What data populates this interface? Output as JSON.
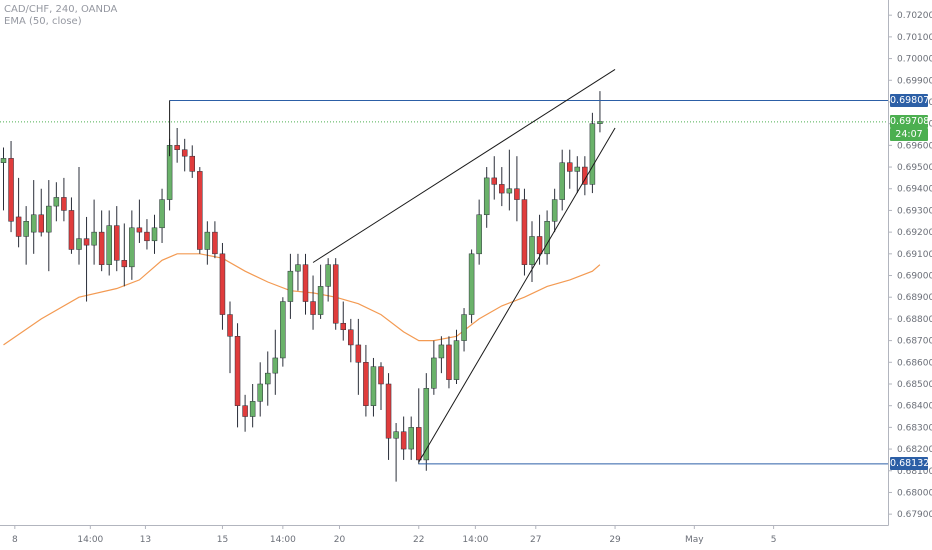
{
  "header": {
    "title": "CAD/CHF, 240, OANDA",
    "indicator": "EMA (50, close)"
  },
  "colors": {
    "bull": "#6ab26a",
    "bear": "#e03c3c",
    "ema": "#f39a52",
    "level": "#2c5fa6",
    "current": "#4caf50",
    "trend": "#1a1a1a"
  },
  "chart_data": {
    "type": "candlestick",
    "symbol": "CAD/CHF",
    "timeframe": "240",
    "source": "OANDA",
    "y_axis": {
      "min": 0.6785,
      "max": 0.7027,
      "ticks": [
        "0.70200",
        "0.70100",
        "0.70000",
        "0.69900",
        "0.69800",
        "0.69700",
        "0.69600",
        "0.69500",
        "0.69400",
        "0.69300",
        "0.69200",
        "0.69100",
        "0.69000",
        "0.68900",
        "0.68800",
        "0.68700",
        "0.68600",
        "0.68500",
        "0.68400",
        "0.68300",
        "0.68200",
        "0.68100",
        "0.68000",
        "0.67900"
      ]
    },
    "x_axis": {
      "labels": [
        {
          "label": "8",
          "x": 1.5
        },
        {
          "label": "14:00",
          "x": 11.5
        },
        {
          "label": "13",
          "x": 18.8
        },
        {
          "label": "15",
          "x": 29
        },
        {
          "label": "14:00",
          "x": 37
        },
        {
          "label": "20",
          "x": 44.5
        },
        {
          "label": "22",
          "x": 55
        },
        {
          "label": "14:00",
          "x": 62.5
        },
        {
          "label": "27",
          "x": 70.5
        },
        {
          "label": "29",
          "x": 81
        },
        {
          "label": "May",
          "x": 91.5
        },
        {
          "label": "5",
          "x": 102
        }
      ]
    },
    "candles": [
      {
        "o": 0.6952,
        "h": 0.6959,
        "l": 0.693,
        "c": 0.6954
      },
      {
        "o": 0.6954,
        "h": 0.6962,
        "l": 0.692,
        "c": 0.6925
      },
      {
        "o": 0.6927,
        "h": 0.6945,
        "l": 0.6913,
        "c": 0.6918
      },
      {
        "o": 0.6918,
        "h": 0.6932,
        "l": 0.6905,
        "c": 0.6925
      },
      {
        "o": 0.692,
        "h": 0.6944,
        "l": 0.691,
        "c": 0.6928
      },
      {
        "o": 0.6928,
        "h": 0.694,
        "l": 0.6918,
        "c": 0.692
      },
      {
        "o": 0.692,
        "h": 0.6944,
        "l": 0.6902,
        "c": 0.6932
      },
      {
        "o": 0.6932,
        "h": 0.6943,
        "l": 0.6925,
        "c": 0.6936
      },
      {
        "o": 0.6936,
        "h": 0.6945,
        "l": 0.6925,
        "c": 0.693
      },
      {
        "o": 0.693,
        "h": 0.6936,
        "l": 0.691,
        "c": 0.6912
      },
      {
        "o": 0.6912,
        "h": 0.695,
        "l": 0.6905,
        "c": 0.6917
      },
      {
        "o": 0.6917,
        "h": 0.6927,
        "l": 0.6888,
        "c": 0.6914
      },
      {
        "o": 0.6914,
        "h": 0.6935,
        "l": 0.6905,
        "c": 0.692
      },
      {
        "o": 0.692,
        "h": 0.693,
        "l": 0.6902,
        "c": 0.6905
      },
      {
        "o": 0.6905,
        "h": 0.693,
        "l": 0.69,
        "c": 0.6923
      },
      {
        "o": 0.6923,
        "h": 0.6932,
        "l": 0.6902,
        "c": 0.6907
      },
      {
        "o": 0.6907,
        "h": 0.6924,
        "l": 0.6895,
        "c": 0.6904
      },
      {
        "o": 0.6904,
        "h": 0.693,
        "l": 0.6898,
        "c": 0.6922
      },
      {
        "o": 0.6922,
        "h": 0.6935,
        "l": 0.6915,
        "c": 0.692
      },
      {
        "o": 0.692,
        "h": 0.6926,
        "l": 0.6912,
        "c": 0.6916
      },
      {
        "o": 0.6916,
        "h": 0.6928,
        "l": 0.691,
        "c": 0.6922
      },
      {
        "o": 0.6922,
        "h": 0.694,
        "l": 0.6915,
        "c": 0.6935
      },
      {
        "o": 0.6935,
        "h": 0.6963,
        "l": 0.693,
        "c": 0.696
      },
      {
        "o": 0.696,
        "h": 0.6968,
        "l": 0.6952,
        "c": 0.6958
      },
      {
        "o": 0.6958,
        "h": 0.6963,
        "l": 0.6948,
        "c": 0.6955
      },
      {
        "o": 0.6955,
        "h": 0.696,
        "l": 0.6945,
        "c": 0.6948
      },
      {
        "o": 0.6948,
        "h": 0.695,
        "l": 0.691,
        "c": 0.6912
      },
      {
        "o": 0.6912,
        "h": 0.6925,
        "l": 0.6905,
        "c": 0.692
      },
      {
        "o": 0.692,
        "h": 0.6925,
        "l": 0.6908,
        "c": 0.691
      },
      {
        "o": 0.691,
        "h": 0.6915,
        "l": 0.6875,
        "c": 0.6882
      },
      {
        "o": 0.6882,
        "h": 0.6888,
        "l": 0.6855,
        "c": 0.6872
      },
      {
        "o": 0.6872,
        "h": 0.6878,
        "l": 0.683,
        "c": 0.684
      },
      {
        "o": 0.684,
        "h": 0.6845,
        "l": 0.6828,
        "c": 0.6835
      },
      {
        "o": 0.6835,
        "h": 0.685,
        "l": 0.683,
        "c": 0.6842
      },
      {
        "o": 0.6842,
        "h": 0.686,
        "l": 0.6835,
        "c": 0.685
      },
      {
        "o": 0.685,
        "h": 0.6865,
        "l": 0.684,
        "c": 0.6855
      },
      {
        "o": 0.6855,
        "h": 0.6875,
        "l": 0.6845,
        "c": 0.6862
      },
      {
        "o": 0.6862,
        "h": 0.689,
        "l": 0.6858,
        "c": 0.6888
      },
      {
        "o": 0.6888,
        "h": 0.691,
        "l": 0.688,
        "c": 0.6902
      },
      {
        "o": 0.6902,
        "h": 0.691,
        "l": 0.6893,
        "c": 0.6905
      },
      {
        "o": 0.6905,
        "h": 0.691,
        "l": 0.6882,
        "c": 0.6888
      },
      {
        "o": 0.6888,
        "h": 0.69,
        "l": 0.6875,
        "c": 0.6882
      },
      {
        "o": 0.6882,
        "h": 0.6905,
        "l": 0.688,
        "c": 0.6895
      },
      {
        "o": 0.6895,
        "h": 0.6908,
        "l": 0.6888,
        "c": 0.6905
      },
      {
        "o": 0.6905,
        "h": 0.6908,
        "l": 0.6875,
        "c": 0.6878
      },
      {
        "o": 0.6878,
        "h": 0.6888,
        "l": 0.687,
        "c": 0.6875
      },
      {
        "o": 0.6875,
        "h": 0.688,
        "l": 0.686,
        "c": 0.6868
      },
      {
        "o": 0.6868,
        "h": 0.688,
        "l": 0.6845,
        "c": 0.686
      },
      {
        "o": 0.686,
        "h": 0.6868,
        "l": 0.6835,
        "c": 0.684
      },
      {
        "o": 0.684,
        "h": 0.6862,
        "l": 0.6835,
        "c": 0.6858
      },
      {
        "o": 0.6858,
        "h": 0.686,
        "l": 0.6838,
        "c": 0.685
      },
      {
        "o": 0.685,
        "h": 0.6855,
        "l": 0.6815,
        "c": 0.6825
      },
      {
        "o": 0.6825,
        "h": 0.6832,
        "l": 0.6805,
        "c": 0.6828
      },
      {
        "o": 0.6828,
        "h": 0.6835,
        "l": 0.6815,
        "c": 0.682
      },
      {
        "o": 0.682,
        "h": 0.6835,
        "l": 0.6815,
        "c": 0.683
      },
      {
        "o": 0.683,
        "h": 0.6848,
        "l": 0.6813,
        "c": 0.6815
      },
      {
        "o": 0.6815,
        "h": 0.6855,
        "l": 0.681,
        "c": 0.6848
      },
      {
        "o": 0.6848,
        "h": 0.687,
        "l": 0.6845,
        "c": 0.6862
      },
      {
        "o": 0.6862,
        "h": 0.6872,
        "l": 0.6855,
        "c": 0.6868
      },
      {
        "o": 0.6868,
        "h": 0.6872,
        "l": 0.6848,
        "c": 0.6852
      },
      {
        "o": 0.6852,
        "h": 0.6875,
        "l": 0.685,
        "c": 0.687
      },
      {
        "o": 0.687,
        "h": 0.6885,
        "l": 0.6865,
        "c": 0.6882
      },
      {
        "o": 0.6882,
        "h": 0.6912,
        "l": 0.6878,
        "c": 0.691
      },
      {
        "o": 0.691,
        "h": 0.6935,
        "l": 0.6905,
        "c": 0.6928
      },
      {
        "o": 0.6928,
        "h": 0.695,
        "l": 0.6922,
        "c": 0.6945
      },
      {
        "o": 0.6945,
        "h": 0.6955,
        "l": 0.6935,
        "c": 0.6942
      },
      {
        "o": 0.6942,
        "h": 0.695,
        "l": 0.6932,
        "c": 0.6938
      },
      {
        "o": 0.6938,
        "h": 0.6958,
        "l": 0.693,
        "c": 0.694
      },
      {
        "o": 0.694,
        "h": 0.6955,
        "l": 0.6925,
        "c": 0.6935
      },
      {
        "o": 0.6935,
        "h": 0.694,
        "l": 0.69,
        "c": 0.6905
      },
      {
        "o": 0.6905,
        "h": 0.6925,
        "l": 0.6897,
        "c": 0.6918
      },
      {
        "o": 0.6918,
        "h": 0.6928,
        "l": 0.6905,
        "c": 0.691
      },
      {
        "o": 0.691,
        "h": 0.693,
        "l": 0.6905,
        "c": 0.6925
      },
      {
        "o": 0.6925,
        "h": 0.694,
        "l": 0.692,
        "c": 0.6935
      },
      {
        "o": 0.6935,
        "h": 0.6958,
        "l": 0.693,
        "c": 0.6952
      },
      {
        "o": 0.6952,
        "h": 0.6958,
        "l": 0.694,
        "c": 0.6948
      },
      {
        "o": 0.6948,
        "h": 0.6955,
        "l": 0.6938,
        "c": 0.695
      },
      {
        "o": 0.695,
        "h": 0.6955,
        "l": 0.6937,
        "c": 0.6942
      },
      {
        "o": 0.6942,
        "h": 0.6975,
        "l": 0.6938,
        "c": 0.697
      },
      {
        "o": 0.697,
        "h": 0.6985,
        "l": 0.6966,
        "c": 0.6971
      }
    ],
    "ema": [
      [
        0,
        0.6868
      ],
      [
        5,
        0.688
      ],
      [
        10,
        0.689
      ],
      [
        15,
        0.6894
      ],
      [
        18,
        0.6898
      ],
      [
        21,
        0.6907
      ],
      [
        23,
        0.691
      ],
      [
        26,
        0.691
      ],
      [
        29,
        0.6908
      ],
      [
        32,
        0.6902
      ],
      [
        35,
        0.6897
      ],
      [
        38,
        0.6893
      ],
      [
        41,
        0.6892
      ],
      [
        44,
        0.689
      ],
      [
        47,
        0.6887
      ],
      [
        50,
        0.6882
      ],
      [
        53,
        0.6874
      ],
      [
        55,
        0.687
      ],
      [
        57,
        0.687
      ],
      [
        60,
        0.6872
      ],
      [
        63,
        0.688
      ],
      [
        66,
        0.6886
      ],
      [
        69,
        0.689
      ],
      [
        72,
        0.6895
      ],
      [
        75,
        0.6898
      ],
      [
        78,
        0.6902
      ],
      [
        79,
        0.6905
      ]
    ],
    "trendlines": [
      {
        "from": [
          41,
          0.6906
        ],
        "to": [
          81,
          0.6995
        ]
      },
      {
        "from": [
          55,
          0.6814
        ],
        "to": [
          81,
          0.6968
        ]
      }
    ],
    "levels": [
      {
        "price": 0.69807,
        "label": "0.69807",
        "from": 22,
        "style": "solid"
      },
      {
        "price": 0.69708,
        "label": "0.69708",
        "from": 0,
        "style": "dotted"
      },
      {
        "price": 0.68132,
        "label": "0.68132",
        "from": 55,
        "style": "solid"
      }
    ],
    "current_price": "0.69708",
    "countdown": "24:07"
  }
}
